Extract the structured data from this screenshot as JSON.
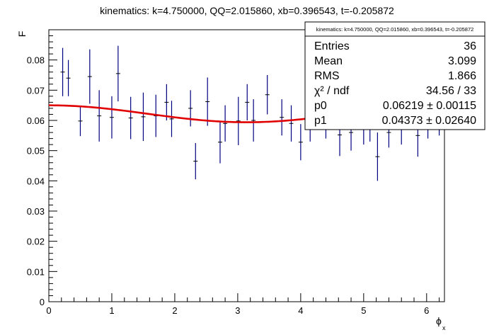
{
  "chart_data": {
    "type": "scatter",
    "title": "kinematics: k=4.750000, QQ=2.015860, xb=0.396543, t=-0.205872",
    "xlabel": "ϕ",
    "xlabel_sub": "x",
    "ylabel": "F",
    "xlim": [
      0,
      6.2832
    ],
    "ylim": [
      0,
      0.09
    ],
    "xticks": [
      0,
      1,
      2,
      3,
      4,
      5,
      6
    ],
    "yticks": [
      0,
      0.01,
      0.02,
      0.03,
      0.04,
      0.05,
      0.06,
      0.07,
      0.08
    ],
    "ytick_labels": [
      "0",
      "0.01",
      "0.02",
      "0.03",
      "0.04",
      "0.05",
      "0.06",
      "0.07",
      "0.08"
    ],
    "grid": false,
    "marker_color": "#000080",
    "fit_color": "#e00000",
    "series": [
      {
        "x": [
          0.22,
          0.31,
          0.5,
          0.65,
          0.8,
          1.0,
          1.1,
          1.3,
          1.5,
          1.7,
          1.87,
          1.95,
          2.25,
          2.33,
          2.52,
          2.72,
          2.8,
          3.01,
          3.15,
          3.25,
          3.47,
          3.7,
          3.85,
          4.0,
          4.15,
          4.4,
          4.62,
          4.8,
          5.0,
          5.1,
          5.22,
          5.4,
          5.6,
          5.86,
          6.02,
          6.2
        ],
        "y": [
          0.076,
          0.074,
          0.0598,
          0.0745,
          0.0615,
          0.061,
          0.0755,
          0.0608,
          0.0612,
          0.0615,
          0.066,
          0.0605,
          0.064,
          0.0465,
          0.0662,
          0.0528,
          0.059,
          0.0598,
          0.066,
          0.06,
          0.0685,
          0.061,
          0.059,
          0.0528,
          0.059,
          0.06,
          0.0552,
          0.056,
          0.058,
          0.06,
          0.048,
          0.056,
          0.057,
          0.055,
          0.06,
          0.061
        ],
        "yerr": [
          0.008,
          0.006,
          0.005,
          0.009,
          0.0085,
          0.007,
          0.0092,
          0.007,
          0.008,
          0.007,
          0.006,
          0.006,
          0.006,
          0.006,
          0.008,
          0.007,
          0.006,
          0.008,
          0.006,
          0.007,
          0.0065,
          0.006,
          0.006,
          0.006,
          0.006,
          0.006,
          0.007,
          0.006,
          0.006,
          0.007,
          0.008,
          0.005,
          0.005,
          0.007,
          0.006,
          0.006
        ]
      }
    ],
    "fit": {
      "function": "p0 + p1*cos(x)... (fit curve)",
      "p0": 0.06219,
      "p1": 0.04373
    },
    "stats_box": {
      "header": "kinematics: k=4.750000, QQ=2.015860, xb=0.396543, t=-0.205872",
      "rows": [
        {
          "label": "Entries",
          "value": "36"
        },
        {
          "label": "Mean",
          "value": "3.099"
        },
        {
          "label": "RMS",
          "value": "1.866"
        },
        {
          "label": "χ² / ndf",
          "value": "34.56 / 33"
        },
        {
          "label": "p0",
          "value": "0.06219 ± 0.00115"
        },
        {
          "label": "p1",
          "value": "0.04373 ± 0.02640"
        }
      ]
    }
  }
}
